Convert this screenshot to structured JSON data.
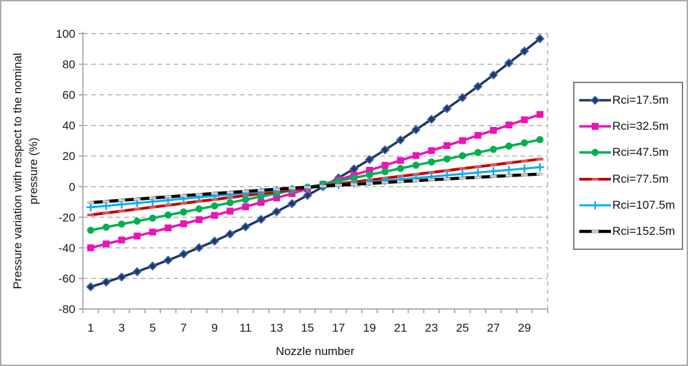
{
  "chart": {
    "y_axis_title_line1": "Pressure variation with respect to the nominal",
    "y_axis_title_line2": "pressure (%)",
    "x_axis_title": "Nozzle number"
  },
  "chart_data": {
    "type": "line",
    "title": "",
    "xlabel": "Nozzle number",
    "ylabel": "Pressure variation with respect to the nominal pressure (%)",
    "x": [
      1,
      2,
      3,
      4,
      5,
      6,
      7,
      8,
      9,
      10,
      11,
      12,
      13,
      14,
      15,
      16,
      17,
      18,
      19,
      20,
      21,
      22,
      23,
      24,
      25,
      26,
      27,
      28,
      29,
      30
    ],
    "x_tick_labels": [
      "1",
      "3",
      "5",
      "7",
      "9",
      "11",
      "13",
      "15",
      "17",
      "19",
      "21",
      "23",
      "25",
      "27",
      "29"
    ],
    "y_ticks": [
      100,
      80,
      60,
      40,
      20,
      0,
      -20,
      -40,
      -60,
      -80
    ],
    "ylim": [
      -80,
      100
    ],
    "grid": "horizontal-dashed",
    "legend_position": "right",
    "axis_color": "#a6a6a6",
    "grid_color": "#ababab",
    "tick_label_color": "#1a1a1a",
    "series": [
      {
        "name": "Rci=17.5m",
        "color": "#1F3864",
        "marker": "diamond",
        "marker_color": "#1F3864",
        "marker_stroke": "#3A66AE",
        "line_width": 3.5,
        "values": [
          -65.5,
          -62.4,
          -59.1,
          -55.6,
          -51.9,
          -48.1,
          -44.1,
          -39.9,
          -35.6,
          -31.0,
          -26.3,
          -21.4,
          -16.4,
          -11.1,
          -5.7,
          -0.1,
          5.7,
          11.6,
          17.7,
          24.0,
          30.5,
          37.2,
          44.0,
          51.0,
          58.2,
          65.5,
          73.0,
          80.8,
          88.6,
          96.7
        ]
      },
      {
        "name": "Rci=32.5m",
        "color": "#EB14B4",
        "marker": "square",
        "marker_color": "#EB14B4",
        "marker_stroke": "none",
        "line_width": 3.5,
        "values": [
          -40.0,
          -37.5,
          -34.9,
          -32.3,
          -29.7,
          -27.0,
          -24.3,
          -21.6,
          -18.8,
          -16.0,
          -13.2,
          -10.3,
          -7.4,
          -4.5,
          -1.5,
          1.5,
          4.5,
          7.6,
          10.7,
          13.9,
          17.1,
          20.3,
          23.5,
          26.8,
          30.1,
          33.5,
          36.8,
          40.3,
          43.7,
          47.2
        ]
      },
      {
        "name": "Rci=47.5m",
        "color": "#00B050",
        "marker": "circle",
        "marker_color": "#00B050",
        "marker_stroke": "none",
        "line_width": 3.5,
        "values": [
          -28.5,
          -26.5,
          -24.5,
          -22.6,
          -20.6,
          -18.6,
          -16.6,
          -14.6,
          -12.6,
          -10.5,
          -8.5,
          -6.5,
          -4.5,
          -2.4,
          -0.4,
          1.6,
          3.7,
          5.7,
          7.8,
          9.8,
          11.9,
          14.0,
          16.1,
          18.1,
          20.2,
          22.3,
          24.4,
          26.5,
          28.6,
          30.7
        ]
      },
      {
        "name": "Rci=77.5m",
        "color": "#C00000",
        "marker": "dash",
        "marker_color": "#E05252",
        "marker_stroke": "none",
        "line_width": 4,
        "values": [
          -18.5,
          -17.2,
          -16.0,
          -14.7,
          -13.4,
          -12.2,
          -10.9,
          -9.6,
          -8.4,
          -7.1,
          -5.8,
          -4.6,
          -3.3,
          -2.0,
          -0.8,
          0.5,
          1.8,
          3.0,
          4.3,
          5.5,
          6.8,
          8.0,
          9.3,
          10.5,
          11.8,
          13.0,
          14.2,
          15.5,
          16.7,
          18.0
        ]
      },
      {
        "name": "Rci=107.5m",
        "color": "#00B0F0",
        "marker": "plus",
        "marker_color": "#00B0F0",
        "marker_stroke": "#00B0F0",
        "line_width": 3,
        "values": [
          -13.5,
          -12.6,
          -11.6,
          -10.7,
          -9.8,
          -8.9,
          -7.9,
          -7.0,
          -6.1,
          -5.2,
          -4.3,
          -3.4,
          -2.4,
          -1.5,
          -0.6,
          0.3,
          1.2,
          2.1,
          3.0,
          3.9,
          4.8,
          5.7,
          6.5,
          7.4,
          8.3,
          9.2,
          10.1,
          10.9,
          11.8,
          12.7
        ]
      },
      {
        "name": "Rci=152.5m",
        "color": "#000000",
        "marker": "dash",
        "marker_color": "#C9C9C9",
        "marker_stroke": "none",
        "line_width": 4.5,
        "values": [
          -10.5,
          -9.7,
          -8.9,
          -8.2,
          -7.4,
          -6.7,
          -5.9,
          -5.2,
          -4.5,
          -3.8,
          -3.1,
          -2.4,
          -1.7,
          -1.0,
          -0.4,
          0.3,
          0.9,
          1.5,
          2.1,
          2.7,
          3.3,
          3.9,
          4.5,
          5.0,
          5.6,
          6.1,
          6.7,
          7.2,
          7.7,
          8.2
        ]
      }
    ]
  }
}
